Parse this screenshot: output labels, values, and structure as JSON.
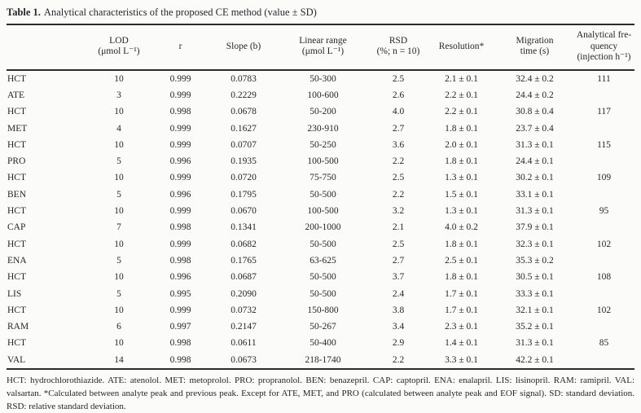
{
  "title": {
    "label": "Table 1.",
    "text": "Analytical characteristics of the proposed CE method (value ± SD)"
  },
  "table": {
    "columns": [
      {
        "key": "analyte",
        "lines": [
          ""
        ]
      },
      {
        "key": "lod",
        "lines": [
          "LOD",
          "(μmol L⁻¹)"
        ]
      },
      {
        "key": "r",
        "lines": [
          "r"
        ]
      },
      {
        "key": "slope",
        "lines": [
          "Slope (b)"
        ]
      },
      {
        "key": "linear-range",
        "lines": [
          "Linear range",
          "(μmol L⁻¹)"
        ]
      },
      {
        "key": "rsd",
        "lines": [
          "RSD",
          "(%; n = 10)"
        ]
      },
      {
        "key": "resolution",
        "lines": [
          "Resolution*"
        ]
      },
      {
        "key": "migration-time",
        "lines": [
          "Migration",
          "time (s)"
        ]
      },
      {
        "key": "frequency",
        "lines": [
          "Analytical fre-",
          "quency",
          "(injection h⁻¹)"
        ]
      }
    ],
    "rows": [
      [
        "HCT",
        "10",
        "0.999",
        "0.0783",
        "50-300",
        "2.5",
        "2.1 ± 0.1",
        "32.4 ± 0.2",
        "111"
      ],
      [
        "ATE",
        "3",
        "0.999",
        "0.2229",
        "100-600",
        "2.6",
        "2.2 ± 0.1",
        "24.4 ± 0.2",
        ""
      ],
      [
        "HCT",
        "10",
        "0.998",
        "0.0678",
        "50-200",
        "4.0",
        "2.2 ± 0.1",
        "30.8 ± 0.4",
        "117"
      ],
      [
        "MET",
        "4",
        "0.999",
        "0.1627",
        "230-910",
        "2.7",
        "1.8 ± 0.1",
        "23.7 ± 0.4",
        ""
      ],
      [
        "HCT",
        "10",
        "0.999",
        "0.0707",
        "50-250",
        "3.6",
        "2.0 ± 0.1",
        "31.3 ± 0.1",
        "115"
      ],
      [
        "PRO",
        "5",
        "0.996",
        "0.1935",
        "100-500",
        "2.2",
        "1.8 ± 0.1",
        "24.4 ± 0.1",
        ""
      ],
      [
        "HCT",
        "10",
        "0.999",
        "0.0720",
        "75-750",
        "2.5",
        "1.3 ± 0.1",
        "30.2 ± 0.1",
        "109"
      ],
      [
        "BEN",
        "5",
        "0.996",
        "0.1795",
        "50-500",
        "2.2",
        "1.5 ± 0.1",
        "33.1 ± 0.1",
        ""
      ],
      [
        "HCT",
        "10",
        "0.999",
        "0.0670",
        "100-500",
        "3.2",
        "1.3 ± 0.1",
        "31.3 ± 0.1",
        "95"
      ],
      [
        "CAP",
        "7",
        "0.998",
        "0.1341",
        "200-1000",
        "2.1",
        "4.0 ± 0.2",
        "37.9 ± 0.1",
        ""
      ],
      [
        "HCT",
        "10",
        "0.999",
        "0.0682",
        "50-500",
        "2.5",
        "1.8 ± 0.1",
        "32.3 ± 0.1",
        "102"
      ],
      [
        "ENA",
        "5",
        "0.998",
        "0.1765",
        "63-625",
        "2.7",
        "2.5 ± 0.1",
        "35.3 ± 0.2",
        ""
      ],
      [
        "HCT",
        "10",
        "0.996",
        "0.0687",
        "50-500",
        "3.7",
        "1.8 ± 0.1",
        "30.5 ± 0.1",
        "108"
      ],
      [
        "LIS",
        "5",
        "0.995",
        "0.2090",
        "50-500",
        "2.4",
        "1.7 ± 0.1",
        "33.3 ± 0.1",
        ""
      ],
      [
        "HCT",
        "10",
        "0.999",
        "0.0732",
        "150-800",
        "3.8",
        "1.7 ± 0.1",
        "32.1 ± 0.1",
        "102"
      ],
      [
        "RAM",
        "6",
        "0.997",
        "0.2147",
        "50-267",
        "3.4",
        "2.3 ± 0.1",
        "35.2 ± 0.1",
        ""
      ],
      [
        "HCT",
        "10",
        "0.998",
        "0.0611",
        "50-400",
        "2.9",
        "1.4 ± 0.1",
        "31.3 ± 0.1",
        "85"
      ],
      [
        "VAL",
        "14",
        "0.998",
        "0.0673",
        "218-1740",
        "2.2",
        "3.3 ± 0.1",
        "42.2 ± 0.1",
        ""
      ]
    ]
  },
  "footnote": "HCT: hydrochlorothiazide. ATE: atenolol. MET: metoprolol. PRO: propranolol. BEN: benazepril. CAP: captopril. ENA: enalapril. LIS: lisinopril. RAM: ramipril. VAL: valsartan. *Calculated between analyte peak and previous peak. Except for ATE, MET, and PRO (calculated between analyte peak and EOF signal). SD: standard deviation. RSD: relative standard deviation."
}
